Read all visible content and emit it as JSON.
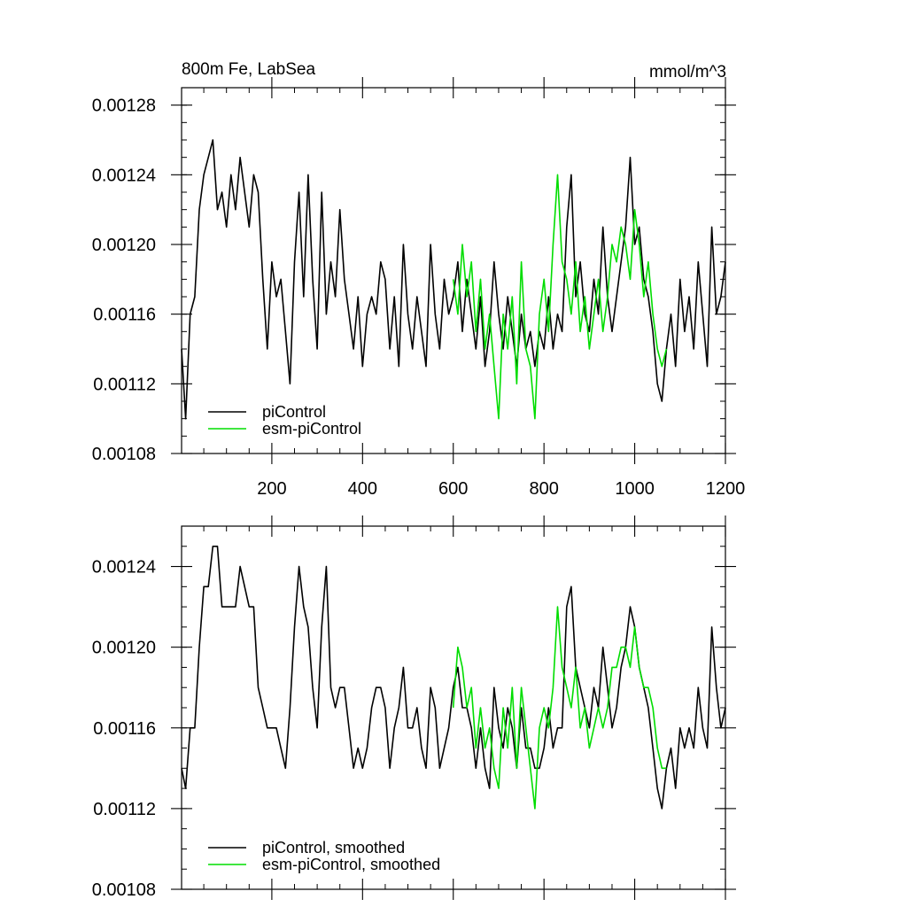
{
  "chart_data": [
    {
      "type": "line",
      "title": "800m Fe, LabSea",
      "units_label": "mmol/m^3",
      "xlim": [
        1,
        1200
      ],
      "ylim": [
        0.00108,
        0.00129
      ],
      "x_ticks": [
        200,
        400,
        600,
        800,
        1000,
        1200
      ],
      "x_tick_labels": [
        "200",
        "400",
        "600",
        "800",
        "1000",
        "1200"
      ],
      "y_ticks": [
        0.00108,
        0.00112,
        0.00116,
        0.0012,
        0.00124,
        0.00128
      ],
      "y_tick_labels": [
        "0.00108",
        "0.00112",
        "0.00116",
        "0.00120",
        "0.00124",
        "0.00128"
      ],
      "grid": false,
      "legend_position": "bottom-left",
      "series": [
        {
          "name": "piControl",
          "color": "#000000",
          "x": [
            1,
            10,
            20,
            30,
            40,
            50,
            60,
            70,
            80,
            90,
            100,
            110,
            120,
            130,
            140,
            150,
            160,
            170,
            180,
            190,
            200,
            210,
            220,
            230,
            240,
            250,
            260,
            270,
            280,
            290,
            300,
            310,
            320,
            330,
            340,
            350,
            360,
            370,
            380,
            390,
            400,
            410,
            420,
            430,
            440,
            450,
            460,
            470,
            480,
            490,
            500,
            510,
            520,
            530,
            540,
            550,
            560,
            570,
            580,
            590,
            600,
            610,
            620,
            630,
            640,
            650,
            660,
            670,
            680,
            690,
            700,
            710,
            720,
            730,
            740,
            750,
            760,
            770,
            780,
            790,
            800,
            810,
            820,
            830,
            840,
            850,
            860,
            870,
            880,
            890,
            900,
            910,
            920,
            930,
            940,
            950,
            960,
            970,
            980,
            990,
            1000,
            1010,
            1020,
            1030,
            1040,
            1050,
            1060,
            1070,
            1080,
            1090,
            1100,
            1110,
            1120,
            1130,
            1140,
            1150,
            1160,
            1170,
            1180,
            1190,
            1200
          ],
          "values": [
            0.00114,
            0.0011,
            0.00116,
            0.00117,
            0.00122,
            0.00124,
            0.00125,
            0.00126,
            0.00122,
            0.00123,
            0.00121,
            0.00124,
            0.00122,
            0.00125,
            0.00123,
            0.00121,
            0.00124,
            0.00123,
            0.00118,
            0.00114,
            0.00119,
            0.00117,
            0.00118,
            0.00115,
            0.00112,
            0.00119,
            0.00123,
            0.00117,
            0.00124,
            0.00118,
            0.00114,
            0.00123,
            0.00116,
            0.00119,
            0.00117,
            0.00122,
            0.00118,
            0.00116,
            0.00114,
            0.00117,
            0.00113,
            0.00116,
            0.00117,
            0.00116,
            0.00119,
            0.00118,
            0.00114,
            0.00117,
            0.00113,
            0.0012,
            0.00116,
            0.00114,
            0.00117,
            0.00115,
            0.00113,
            0.0012,
            0.00116,
            0.00114,
            0.00118,
            0.00116,
            0.00117,
            0.00119,
            0.00115,
            0.00118,
            0.00116,
            0.00114,
            0.00117,
            0.00113,
            0.00115,
            0.00119,
            0.00116,
            0.00114,
            0.00117,
            0.00115,
            0.00113,
            0.00116,
            0.00114,
            0.00115,
            0.00113,
            0.00115,
            0.00114,
            0.00117,
            0.00114,
            0.00116,
            0.00115,
            0.00121,
            0.00124,
            0.00117,
            0.00119,
            0.00116,
            0.00115,
            0.00118,
            0.00116,
            0.00121,
            0.00117,
            0.00115,
            0.00117,
            0.00119,
            0.00121,
            0.00125,
            0.0012,
            0.00121,
            0.00118,
            0.00117,
            0.00115,
            0.00112,
            0.00111,
            0.00114,
            0.00116,
            0.00113,
            0.00118,
            0.00115,
            0.00117,
            0.00114,
            0.00119,
            0.00116,
            0.00113,
            0.00121,
            0.00116,
            0.00117,
            0.00119
          ]
        },
        {
          "name": "esm-piControl",
          "color": "#00dd00",
          "x": [
            600,
            610,
            620,
            630,
            640,
            650,
            660,
            670,
            680,
            690,
            700,
            710,
            720,
            730,
            740,
            750,
            760,
            770,
            780,
            790,
            800,
            810,
            820,
            830,
            840,
            850,
            860,
            870,
            880,
            890,
            900,
            910,
            920,
            930,
            940,
            950,
            960,
            970,
            980,
            990,
            1000,
            1010,
            1020,
            1030,
            1040,
            1050,
            1060,
            1070
          ],
          "values": [
            0.00118,
            0.00116,
            0.0012,
            0.00117,
            0.00119,
            0.00115,
            0.00118,
            0.00114,
            0.00116,
            0.00113,
            0.0011,
            0.00116,
            0.00114,
            0.00117,
            0.00112,
            0.00119,
            0.00114,
            0.00113,
            0.0011,
            0.00116,
            0.00118,
            0.00115,
            0.0012,
            0.00124,
            0.00119,
            0.00118,
            0.00116,
            0.00119,
            0.00115,
            0.00117,
            0.00114,
            0.00116,
            0.00118,
            0.00115,
            0.00117,
            0.0012,
            0.00119,
            0.00121,
            0.0012,
            0.00118,
            0.00122,
            0.0012,
            0.00117,
            0.00119,
            0.00116,
            0.00114,
            0.00113,
            0.00114
          ]
        }
      ]
    },
    {
      "type": "line",
      "title": "",
      "xlim": [
        1,
        1200
      ],
      "ylim": [
        0.00108,
        0.00126
      ],
      "x_ticks": [
        200,
        400,
        600,
        800,
        1000,
        1200
      ],
      "x_tick_labels": [],
      "y_ticks": [
        0.00108,
        0.00112,
        0.00116,
        0.0012,
        0.00124
      ],
      "y_tick_labels": [
        "0.00108",
        "0.00112",
        "0.00116",
        "0.00120",
        "0.00124"
      ],
      "grid": false,
      "legend_position": "bottom-left",
      "series": [
        {
          "name": "piControl, smoothed",
          "color": "#000000",
          "x": [
            1,
            10,
            20,
            30,
            40,
            50,
            60,
            70,
            80,
            90,
            100,
            110,
            120,
            130,
            140,
            150,
            160,
            170,
            180,
            190,
            200,
            210,
            220,
            230,
            240,
            250,
            260,
            270,
            280,
            290,
            300,
            310,
            320,
            330,
            340,
            350,
            360,
            370,
            380,
            390,
            400,
            410,
            420,
            430,
            440,
            450,
            460,
            470,
            480,
            490,
            500,
            510,
            520,
            530,
            540,
            550,
            560,
            570,
            580,
            590,
            600,
            610,
            620,
            630,
            640,
            650,
            660,
            670,
            680,
            690,
            700,
            710,
            720,
            730,
            740,
            750,
            760,
            770,
            780,
            790,
            800,
            810,
            820,
            830,
            840,
            850,
            860,
            870,
            880,
            890,
            900,
            910,
            920,
            930,
            940,
            950,
            960,
            970,
            980,
            990,
            1000,
            1010,
            1020,
            1030,
            1040,
            1050,
            1060,
            1070,
            1080,
            1090,
            1100,
            1110,
            1120,
            1130,
            1140,
            1150,
            1160,
            1170,
            1180,
            1190,
            1200
          ],
          "values": [
            0.00114,
            0.00113,
            0.00116,
            0.00116,
            0.0012,
            0.00123,
            0.00123,
            0.00125,
            0.00125,
            0.00122,
            0.00122,
            0.00122,
            0.00122,
            0.00124,
            0.00123,
            0.00122,
            0.00122,
            0.00118,
            0.00117,
            0.00116,
            0.00116,
            0.00116,
            0.00115,
            0.00114,
            0.00117,
            0.00121,
            0.00124,
            0.00122,
            0.00121,
            0.00118,
            0.00116,
            0.00121,
            0.00124,
            0.00118,
            0.00117,
            0.00118,
            0.00118,
            0.00116,
            0.00114,
            0.00115,
            0.00114,
            0.00115,
            0.00117,
            0.00118,
            0.00118,
            0.00117,
            0.00114,
            0.00116,
            0.00117,
            0.00119,
            0.00116,
            0.00116,
            0.00117,
            0.00115,
            0.00114,
            0.00118,
            0.00117,
            0.00114,
            0.00115,
            0.00116,
            0.00118,
            0.00119,
            0.00117,
            0.00117,
            0.00116,
            0.00114,
            0.00116,
            0.00114,
            0.00113,
            0.00118,
            0.00116,
            0.00115,
            0.00117,
            0.00116,
            0.00114,
            0.00117,
            0.00115,
            0.00115,
            0.00114,
            0.00114,
            0.00115,
            0.00117,
            0.00115,
            0.00116,
            0.00116,
            0.00122,
            0.00123,
            0.00119,
            0.00118,
            0.00117,
            0.00116,
            0.00118,
            0.00117,
            0.0012,
            0.00118,
            0.00116,
            0.00117,
            0.00119,
            0.0012,
            0.00122,
            0.00121,
            0.00119,
            0.00118,
            0.00117,
            0.00115,
            0.00113,
            0.00112,
            0.00114,
            0.00115,
            0.00113,
            0.00116,
            0.00115,
            0.00116,
            0.00115,
            0.00118,
            0.00116,
            0.00115,
            0.00121,
            0.00118,
            0.00116,
            0.00117
          ]
        },
        {
          "name": "esm-piControl, smoothed",
          "color": "#00dd00",
          "x": [
            600,
            610,
            620,
            630,
            640,
            650,
            660,
            670,
            680,
            690,
            700,
            710,
            720,
            730,
            740,
            750,
            760,
            770,
            780,
            790,
            800,
            810,
            820,
            830,
            840,
            850,
            860,
            870,
            880,
            890,
            900,
            910,
            920,
            930,
            940,
            950,
            960,
            970,
            980,
            990,
            1000,
            1010,
            1020,
            1030,
            1040,
            1050,
            1060,
            1070
          ],
          "values": [
            0.00117,
            0.0012,
            0.00119,
            0.00117,
            0.00118,
            0.00115,
            0.00117,
            0.00115,
            0.00116,
            0.00114,
            0.00113,
            0.00117,
            0.00115,
            0.00118,
            0.00114,
            0.00118,
            0.00116,
            0.00114,
            0.00112,
            0.00116,
            0.00117,
            0.00116,
            0.00118,
            0.00122,
            0.00119,
            0.00118,
            0.00117,
            0.00119,
            0.00116,
            0.00117,
            0.00115,
            0.00116,
            0.00117,
            0.00116,
            0.00117,
            0.00119,
            0.00119,
            0.0012,
            0.0012,
            0.00119,
            0.00121,
            0.00119,
            0.00118,
            0.00118,
            0.00117,
            0.00115,
            0.00114,
            0.00114
          ]
        }
      ]
    }
  ]
}
